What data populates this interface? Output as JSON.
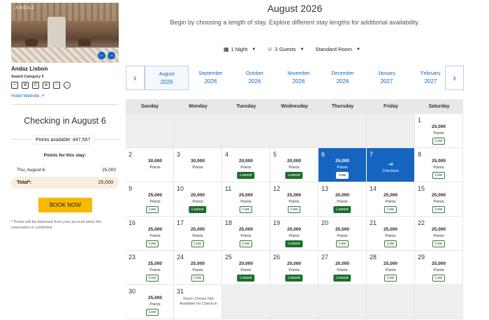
{
  "hotel": {
    "logo": "ANDAZ",
    "name": "Andaz Lisbon",
    "category": "Award Category 6",
    "website": "Hotel Website",
    "amenities": [
      "wifi-icon",
      "concierge-icon",
      "restaurant-icon",
      "fitness-icon",
      "accessible-icon",
      "parking-icon"
    ]
  },
  "booking": {
    "title": "Checking in August 6",
    "points_available": "Points available: 447,567",
    "stay_heading": "Points for this stay:",
    "line_label": "Thu, August 6:",
    "line_value": "25,000",
    "total_label": "Total*:",
    "total_value": "25,000",
    "book_button": "BOOK NOW",
    "note": "* Points will be deducted from your account when the reservation is confirmed."
  },
  "header": {
    "month_title": "August 2026",
    "subtitle": "Begin by choosing a length of stay. Explore different stay lengths for additional availability."
  },
  "filters": {
    "nights": "1 Night",
    "guests": "2 Guests",
    "room": "Standard Room"
  },
  "months": [
    {
      "month": "August",
      "year": "2026",
      "selected": true
    },
    {
      "month": "September",
      "year": "2026"
    },
    {
      "month": "October",
      "year": "2026"
    },
    {
      "month": "November",
      "year": "2026"
    },
    {
      "month": "December",
      "year": "2026"
    },
    {
      "month": "January",
      "year": "2027"
    },
    {
      "month": "February",
      "year": "2027"
    }
  ],
  "weekdays": [
    "Sunday",
    "Monday",
    "Tuesday",
    "Wednesday",
    "Thursday",
    "Friday",
    "Saturday"
  ],
  "calendar": {
    "points_label": "Points",
    "checkout_label": "Checkout",
    "unavailable_text": "Room Choice Not Available for Check-in",
    "days": [
      {
        "day": "1",
        "col": 6,
        "row": 0,
        "pts": "25,000",
        "badge": "Low"
      },
      {
        "day": "2",
        "col": 0,
        "row": 1,
        "pts": "30,000",
        "badge": ""
      },
      {
        "day": "3",
        "col": 1,
        "row": 1,
        "pts": "30,000",
        "badge": ""
      },
      {
        "day": "4",
        "col": 2,
        "row": 1,
        "pts": "20,000",
        "badge": "Lowest"
      },
      {
        "day": "5",
        "col": 3,
        "row": 1,
        "pts": "20,000",
        "badge": "Lowest"
      },
      {
        "day": "6",
        "col": 4,
        "row": 1,
        "pts": "25,000",
        "badge": "Low",
        "state": "selected"
      },
      {
        "day": "7",
        "col": 5,
        "row": 1,
        "state": "checkout"
      },
      {
        "day": "8",
        "col": 6,
        "row": 1,
        "pts": "25,000",
        "badge": "Low"
      },
      {
        "day": "9",
        "col": 0,
        "row": 2,
        "pts": "25,000",
        "badge": "Low"
      },
      {
        "day": "10",
        "col": 1,
        "row": 2,
        "pts": "20,000",
        "badge": "Lowest"
      },
      {
        "day": "11",
        "col": 2,
        "row": 2,
        "pts": "25,000",
        "badge": "Low"
      },
      {
        "day": "12",
        "col": 3,
        "row": 2,
        "pts": "25,000",
        "badge": "Low"
      },
      {
        "day": "13",
        "col": 4,
        "row": 2,
        "pts": "20,000",
        "badge": "Lowest"
      },
      {
        "day": "14",
        "col": 5,
        "row": 2,
        "pts": "25,000",
        "badge": "Low"
      },
      {
        "day": "15",
        "col": 6,
        "row": 2,
        "pts": "25,000",
        "badge": "Low"
      },
      {
        "day": "16",
        "col": 0,
        "row": 3,
        "pts": "25,000",
        "badge": "Low"
      },
      {
        "day": "17",
        "col": 1,
        "row": 3,
        "pts": "25,000",
        "badge": "Low"
      },
      {
        "day": "18",
        "col": 2,
        "row": 3,
        "pts": "25,000",
        "badge": "Low"
      },
      {
        "day": "19",
        "col": 3,
        "row": 3,
        "pts": "20,000",
        "badge": "Lowest"
      },
      {
        "day": "20",
        "col": 4,
        "row": 3,
        "pts": "25,000",
        "badge": "Low"
      },
      {
        "day": "21",
        "col": 5,
        "row": 3,
        "pts": "25,000",
        "badge": "Low"
      },
      {
        "day": "22",
        "col": 6,
        "row": 3,
        "pts": "25,000",
        "badge": "Low"
      },
      {
        "day": "23",
        "col": 0,
        "row": 4,
        "pts": "25,000",
        "badge": "Low"
      },
      {
        "day": "24",
        "col": 1,
        "row": 4,
        "pts": "25,000",
        "badge": "Low"
      },
      {
        "day": "25",
        "col": 2,
        "row": 4,
        "pts": "20,000",
        "badge": "Lowest"
      },
      {
        "day": "26",
        "col": 3,
        "row": 4,
        "pts": "20,000",
        "badge": "Lowest"
      },
      {
        "day": "27",
        "col": 4,
        "row": 4,
        "pts": "20,000",
        "badge": "Lowest"
      },
      {
        "day": "28",
        "col": 5,
        "row": 4,
        "pts": "25,000",
        "badge": "Low"
      },
      {
        "day": "29",
        "col": 6,
        "row": 4,
        "pts": "25,000",
        "badge": "Low"
      },
      {
        "day": "30",
        "col": 0,
        "row": 5,
        "pts": "25,000",
        "badge": "Low"
      },
      {
        "day": "31",
        "col": 1,
        "row": 5,
        "state": "unavailable"
      }
    ]
  },
  "colors": {
    "accent": "#1565c0",
    "lowest_badge": "#1b6e2c",
    "book_button": "#f6b900",
    "total_bg": "#fbeedd"
  }
}
